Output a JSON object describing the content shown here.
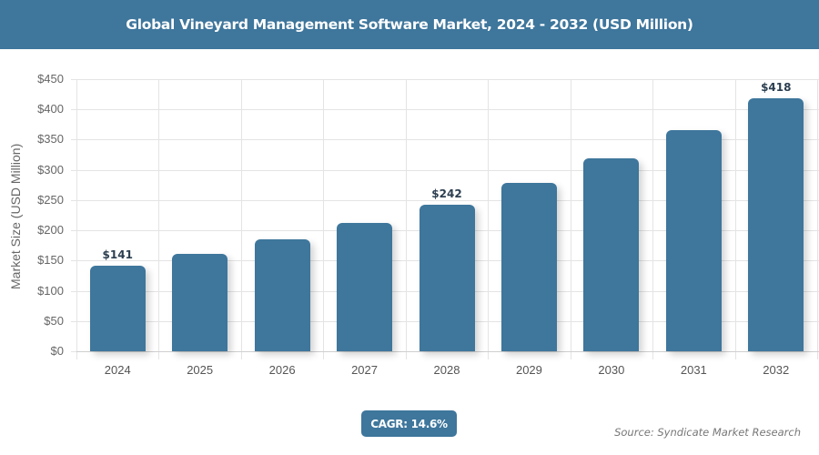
{
  "header": {
    "title": "Global Vineyard Management Software Market, 2024 - 2032 (USD Million)"
  },
  "chart_data": {
    "type": "bar",
    "title": "Global Vineyard Management Software Market, 2024 - 2032 (USD Million)",
    "xlabel": "",
    "ylabel": "Market Size (USD Million)",
    "categories": [
      "2024",
      "2025",
      "2026",
      "2027",
      "2028",
      "2029",
      "2030",
      "2031",
      "2032"
    ],
    "values": [
      141,
      161,
      185,
      212,
      242,
      278,
      319,
      366,
      418
    ],
    "data_labels": {
      "0": "$141",
      "4": "$242",
      "8": "$418"
    },
    "yticks": [
      "$0",
      "$50",
      "$100",
      "$150",
      "$200",
      "$250",
      "$300",
      "$350",
      "$400",
      "$450"
    ],
    "ylim": [
      0,
      450
    ],
    "grid": true,
    "legend": null,
    "bar_color": "#3e769c"
  },
  "footer": {
    "cagr": "CAGR: 14.6%",
    "source": "Source: Syndicate Market Research"
  }
}
